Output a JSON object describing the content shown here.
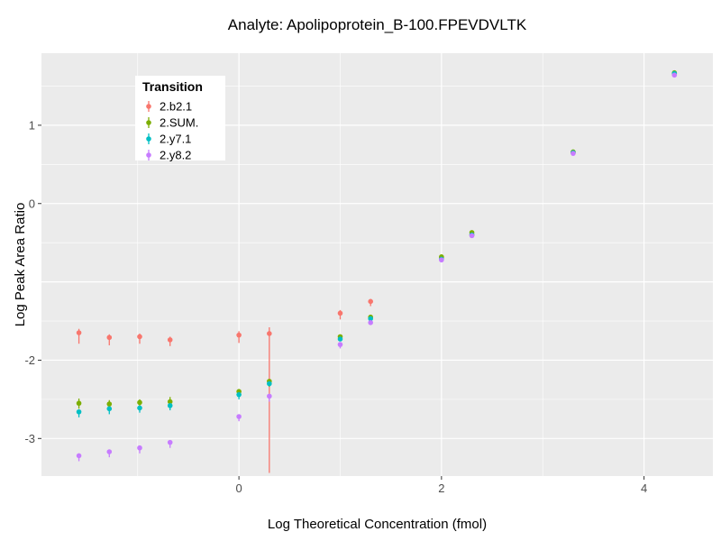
{
  "title": "Analyte: Apolipoprotein_B-100.FPEVDVLTK",
  "chart_data": {
    "type": "scatter",
    "title": "Analyte: Apolipoprotein_B-100.FPEVDVLTK",
    "xlabel": "Log Theoretical Concentration (fmol)",
    "ylabel": "Log Peak Area Ratio",
    "xlim": [
      -1.95,
      4.68
    ],
    "ylim": [
      -3.48,
      1.92
    ],
    "x_ticks": [
      {
        "value": 0,
        "label": "0"
      },
      {
        "value": 2,
        "label": "2"
      },
      {
        "value": 4,
        "label": "4"
      }
    ],
    "y_ticks": [
      {
        "value": 1,
        "label": "1"
      },
      {
        "value": 0,
        "label": "0"
      },
      {
        "value": -2,
        "label": "-2"
      },
      {
        "value": -3,
        "label": "-3"
      }
    ],
    "grid": {
      "x_major": [
        0,
        2,
        4
      ],
      "x_minor": [
        -1,
        1,
        3
      ],
      "y_major": [
        1,
        0,
        -1,
        -2,
        -3
      ],
      "y_minor": [
        1.5,
        0.5,
        -0.5,
        -1.5,
        -2.5
      ]
    },
    "colors": {
      "panel_bg": "#EBEBEB",
      "grid": "#FFFFFF",
      "tick_label": "#4D4D4D",
      "axis_text": "#000000"
    },
    "legend": {
      "title": "Transition",
      "position": "top-left-inset"
    },
    "series": [
      {
        "name": "2.b2.1",
        "color": "#F8766D",
        "points": [
          {
            "x": -1.58,
            "y": -1.65,
            "lo": -1.79,
            "hi": -1.6
          },
          {
            "x": -1.28,
            "y": -1.71,
            "lo": -1.81,
            "hi": -1.67
          },
          {
            "x": -0.98,
            "y": -1.7,
            "lo": -1.79,
            "hi": -1.66
          },
          {
            "x": -0.68,
            "y": -1.74,
            "lo": -1.82,
            "hi": -1.7
          },
          {
            "x": 0.0,
            "y": -1.68,
            "lo": -1.78,
            "hi": -1.63
          },
          {
            "x": 0.3,
            "y": -1.66,
            "lo": -3.44,
            "hi": -1.58
          },
          {
            "x": 1.0,
            "y": -1.4,
            "lo": -1.48,
            "hi": -1.36
          },
          {
            "x": 1.3,
            "y": -1.25,
            "lo": -1.31,
            "hi": -1.22
          },
          {
            "x": 2.0,
            "y": -0.69
          },
          {
            "x": 2.3,
            "y": -0.4
          },
          {
            "x": 3.3,
            "y": 0.65
          },
          {
            "x": 4.3,
            "y": 1.65
          }
        ]
      },
      {
        "name": "2.SUM.",
        "color": "#7CAE00",
        "points": [
          {
            "x": -1.58,
            "y": -2.55,
            "lo": -2.62,
            "hi": -2.49
          },
          {
            "x": -1.28,
            "y": -2.56,
            "lo": -2.65,
            "hi": -2.51
          },
          {
            "x": -0.98,
            "y": -2.54,
            "lo": -2.61,
            "hi": -2.5
          },
          {
            "x": -0.68,
            "y": -2.53,
            "lo": -2.6,
            "hi": -2.47
          },
          {
            "x": 0.0,
            "y": -2.4,
            "lo": -2.46
          },
          {
            "x": 0.3,
            "y": -2.27,
            "lo": -2.34
          },
          {
            "x": 1.0,
            "y": -1.7
          },
          {
            "x": 1.3,
            "y": -1.45
          },
          {
            "x": 2.0,
            "y": -0.68
          },
          {
            "x": 2.3,
            "y": -0.37
          },
          {
            "x": 3.3,
            "y": 0.66
          },
          {
            "x": 4.3,
            "y": 1.67
          }
        ]
      },
      {
        "name": "2.y7.1",
        "color": "#00BFC4",
        "points": [
          {
            "x": -1.58,
            "y": -2.66,
            "lo": -2.73
          },
          {
            "x": -1.28,
            "y": -2.62,
            "lo": -2.69
          },
          {
            "x": -0.98,
            "y": -2.61,
            "lo": -2.67
          },
          {
            "x": -0.68,
            "y": -2.58,
            "lo": -2.64
          },
          {
            "x": 0.0,
            "y": -2.44,
            "lo": -2.5
          },
          {
            "x": 0.3,
            "y": -2.3
          },
          {
            "x": 1.0,
            "y": -1.73
          },
          {
            "x": 1.3,
            "y": -1.47
          },
          {
            "x": 2.0,
            "y": -0.71
          },
          {
            "x": 2.3,
            "y": -0.4
          },
          {
            "x": 3.3,
            "y": 0.65
          },
          {
            "x": 4.3,
            "y": 1.66
          }
        ]
      },
      {
        "name": "2.y8.2",
        "color": "#C77CFF",
        "points": [
          {
            "x": -1.58,
            "y": -3.22,
            "lo": -3.29
          },
          {
            "x": -1.28,
            "y": -3.17,
            "lo": -3.24
          },
          {
            "x": -0.98,
            "y": -3.12,
            "lo": -3.19
          },
          {
            "x": -0.68,
            "y": -3.05,
            "lo": -3.12
          },
          {
            "x": 0.0,
            "y": -2.72,
            "lo": -2.78
          },
          {
            "x": 0.3,
            "y": -2.46,
            "lo": -2.53
          },
          {
            "x": 1.0,
            "y": -1.8,
            "lo": -1.85
          },
          {
            "x": 1.3,
            "y": -1.52
          },
          {
            "x": 2.0,
            "y": -0.72
          },
          {
            "x": 2.3,
            "y": -0.41
          },
          {
            "x": 3.3,
            "y": 0.64
          },
          {
            "x": 4.3,
            "y": 1.64
          }
        ]
      }
    ]
  }
}
